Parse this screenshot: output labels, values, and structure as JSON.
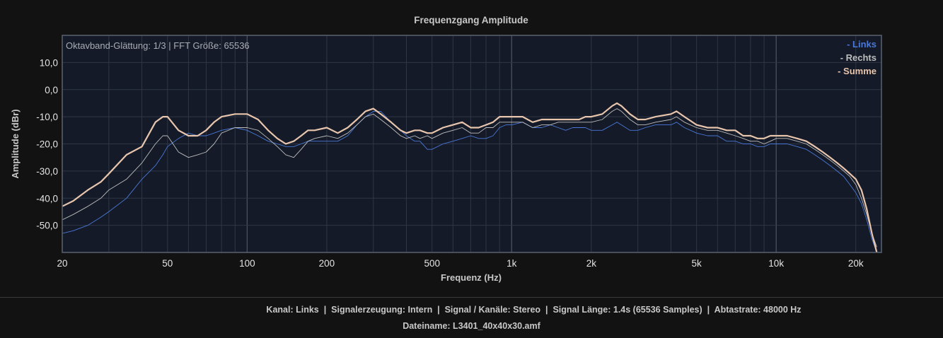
{
  "chart_data": {
    "type": "line",
    "title": "Frequenzgang Amplitude",
    "xlabel": "Frequenz (Hz)",
    "ylabel": "Amplitude (dBr)",
    "x_scale": "log",
    "xlim": [
      20,
      25000
    ],
    "ylim": [
      -60,
      20
    ],
    "x_ticks": [
      20,
      50,
      100,
      200,
      500,
      1000,
      2000,
      5000,
      10000,
      20000
    ],
    "x_tick_labels": [
      "20",
      "50",
      "100",
      "200",
      "500",
      "1k",
      "2k",
      "5k",
      "10k",
      "20k"
    ],
    "y_ticks": [
      10,
      0,
      -10,
      -20,
      -30,
      -40,
      -50
    ],
    "y_tick_labels": [
      "10,0",
      "0,0",
      "-10,0",
      "-20,0",
      "-30,0",
      "-40,0",
      "-50,0"
    ],
    "grid": true,
    "annotation": "Oktavband-Glättung: 1/3 | FFT Größe: 65536",
    "legend": {
      "placement": "top-right"
    },
    "series": [
      {
        "name": "- Links",
        "color": "#4a78d8",
        "points": [
          [
            20,
            -53
          ],
          [
            22,
            -52
          ],
          [
            25,
            -50
          ],
          [
            28,
            -47
          ],
          [
            30,
            -45
          ],
          [
            35,
            -40
          ],
          [
            40,
            -33
          ],
          [
            45,
            -28
          ],
          [
            48,
            -24
          ],
          [
            50,
            -21
          ],
          [
            55,
            -18
          ],
          [
            60,
            -16
          ],
          [
            65,
            -17
          ],
          [
            70,
            -17
          ],
          [
            75,
            -16
          ],
          [
            80,
            -15
          ],
          [
            90,
            -14
          ],
          [
            100,
            -15
          ],
          [
            110,
            -17
          ],
          [
            120,
            -19
          ],
          [
            130,
            -20
          ],
          [
            140,
            -21
          ],
          [
            150,
            -21
          ],
          [
            160,
            -20
          ],
          [
            170,
            -19
          ],
          [
            180,
            -19
          ],
          [
            200,
            -19
          ],
          [
            220,
            -19
          ],
          [
            240,
            -17
          ],
          [
            260,
            -13
          ],
          [
            280,
            -10
          ],
          [
            300,
            -8
          ],
          [
            320,
            -8
          ],
          [
            350,
            -12
          ],
          [
            380,
            -15
          ],
          [
            400,
            -17
          ],
          [
            430,
            -19
          ],
          [
            450,
            -19
          ],
          [
            480,
            -22
          ],
          [
            500,
            -22
          ],
          [
            550,
            -20
          ],
          [
            600,
            -19
          ],
          [
            650,
            -18
          ],
          [
            700,
            -17
          ],
          [
            750,
            -18
          ],
          [
            800,
            -18
          ],
          [
            850,
            -17
          ],
          [
            900,
            -14
          ],
          [
            950,
            -13
          ],
          [
            1000,
            -13
          ],
          [
            1100,
            -12
          ],
          [
            1200,
            -14
          ],
          [
            1300,
            -14
          ],
          [
            1400,
            -13
          ],
          [
            1500,
            -14
          ],
          [
            1600,
            -15
          ],
          [
            1700,
            -14
          ],
          [
            1800,
            -14
          ],
          [
            1900,
            -14
          ],
          [
            2000,
            -15
          ],
          [
            2200,
            -15
          ],
          [
            2400,
            -13
          ],
          [
            2500,
            -12
          ],
          [
            2600,
            -13
          ],
          [
            2800,
            -15
          ],
          [
            3000,
            -15
          ],
          [
            3200,
            -14
          ],
          [
            3500,
            -13
          ],
          [
            4000,
            -13
          ],
          [
            4200,
            -12
          ],
          [
            4500,
            -14
          ],
          [
            5000,
            -16
          ],
          [
            5500,
            -17
          ],
          [
            6000,
            -17
          ],
          [
            6500,
            -19
          ],
          [
            7000,
            -19
          ],
          [
            7500,
            -20
          ],
          [
            8000,
            -20
          ],
          [
            8500,
            -21
          ],
          [
            9000,
            -21
          ],
          [
            9500,
            -20
          ],
          [
            10000,
            -20
          ],
          [
            11000,
            -20
          ],
          [
            12000,
            -21
          ],
          [
            13000,
            -22
          ],
          [
            14000,
            -24
          ],
          [
            15000,
            -26
          ],
          [
            16000,
            -28
          ],
          [
            17000,
            -30
          ],
          [
            18000,
            -32
          ],
          [
            19000,
            -35
          ],
          [
            20000,
            -38
          ],
          [
            21000,
            -42
          ],
          [
            22000,
            -48
          ],
          [
            23000,
            -55
          ],
          [
            24000,
            -60
          ]
        ]
      },
      {
        "name": "- Rechts",
        "color": "#bdbdbd",
        "points": [
          [
            20,
            -48
          ],
          [
            22,
            -46
          ],
          [
            25,
            -43
          ],
          [
            28,
            -40
          ],
          [
            30,
            -37
          ],
          [
            35,
            -33
          ],
          [
            40,
            -27
          ],
          [
            45,
            -20
          ],
          [
            48,
            -17
          ],
          [
            50,
            -17
          ],
          [
            55,
            -23
          ],
          [
            60,
            -25
          ],
          [
            65,
            -24
          ],
          [
            70,
            -23
          ],
          [
            75,
            -20
          ],
          [
            80,
            -16
          ],
          [
            90,
            -14
          ],
          [
            100,
            -14
          ],
          [
            110,
            -15
          ],
          [
            120,
            -18
          ],
          [
            130,
            -21
          ],
          [
            140,
            -24
          ],
          [
            150,
            -25
          ],
          [
            160,
            -22
          ],
          [
            170,
            -19
          ],
          [
            180,
            -18
          ],
          [
            200,
            -17
          ],
          [
            220,
            -18
          ],
          [
            240,
            -16
          ],
          [
            260,
            -13
          ],
          [
            280,
            -10
          ],
          [
            300,
            -9
          ],
          [
            320,
            -11
          ],
          [
            350,
            -14
          ],
          [
            380,
            -17
          ],
          [
            400,
            -18
          ],
          [
            430,
            -17
          ],
          [
            450,
            -18
          ],
          [
            480,
            -17
          ],
          [
            500,
            -18
          ],
          [
            550,
            -16
          ],
          [
            600,
            -15
          ],
          [
            650,
            -14
          ],
          [
            700,
            -16
          ],
          [
            750,
            -16
          ],
          [
            800,
            -14
          ],
          [
            850,
            -14
          ],
          [
            900,
            -12
          ],
          [
            950,
            -12
          ],
          [
            1000,
            -12
          ],
          [
            1100,
            -12
          ],
          [
            1200,
            -14
          ],
          [
            1300,
            -13
          ],
          [
            1400,
            -13
          ],
          [
            1500,
            -12
          ],
          [
            1600,
            -12
          ],
          [
            1700,
            -12
          ],
          [
            1800,
            -12
          ],
          [
            1900,
            -12
          ],
          [
            2000,
            -12
          ],
          [
            2200,
            -11
          ],
          [
            2400,
            -8
          ],
          [
            2500,
            -7
          ],
          [
            2600,
            -8
          ],
          [
            2800,
            -11
          ],
          [
            3000,
            -13
          ],
          [
            3200,
            -13
          ],
          [
            3500,
            -12
          ],
          [
            4000,
            -11
          ],
          [
            4200,
            -10
          ],
          [
            4500,
            -12
          ],
          [
            5000,
            -14
          ],
          [
            5500,
            -15
          ],
          [
            6000,
            -15
          ],
          [
            6500,
            -16
          ],
          [
            7000,
            -17
          ],
          [
            7500,
            -18
          ],
          [
            8000,
            -19
          ],
          [
            8500,
            -19
          ],
          [
            9000,
            -20
          ],
          [
            9500,
            -19
          ],
          [
            10000,
            -18
          ],
          [
            11000,
            -18
          ],
          [
            12000,
            -19
          ],
          [
            13000,
            -20
          ],
          [
            14000,
            -22
          ],
          [
            15000,
            -24
          ],
          [
            16000,
            -26
          ],
          [
            17000,
            -28
          ],
          [
            18000,
            -30
          ],
          [
            19000,
            -32
          ],
          [
            20000,
            -35
          ],
          [
            21000,
            -40
          ],
          [
            22000,
            -46
          ],
          [
            23000,
            -53
          ],
          [
            24000,
            -58
          ]
        ]
      },
      {
        "name": "- Summe",
        "color": "#e8c5ad",
        "points": [
          [
            20,
            -43
          ],
          [
            22,
            -41
          ],
          [
            25,
            -37
          ],
          [
            28,
            -34
          ],
          [
            30,
            -31
          ],
          [
            35,
            -24
          ],
          [
            40,
            -21
          ],
          [
            45,
            -12
          ],
          [
            48,
            -10
          ],
          [
            50,
            -10
          ],
          [
            55,
            -15
          ],
          [
            60,
            -17
          ],
          [
            65,
            -17
          ],
          [
            70,
            -15
          ],
          [
            75,
            -12
          ],
          [
            80,
            -10
          ],
          [
            90,
            -9
          ],
          [
            100,
            -9
          ],
          [
            110,
            -11
          ],
          [
            120,
            -15
          ],
          [
            130,
            -18
          ],
          [
            140,
            -20
          ],
          [
            150,
            -19
          ],
          [
            160,
            -17
          ],
          [
            170,
            -15
          ],
          [
            180,
            -15
          ],
          [
            200,
            -14
          ],
          [
            220,
            -16
          ],
          [
            240,
            -14
          ],
          [
            260,
            -11
          ],
          [
            280,
            -8
          ],
          [
            300,
            -7
          ],
          [
            320,
            -9
          ],
          [
            350,
            -12
          ],
          [
            380,
            -15
          ],
          [
            400,
            -16
          ],
          [
            430,
            -15
          ],
          [
            450,
            -15
          ],
          [
            480,
            -16
          ],
          [
            500,
            -16
          ],
          [
            550,
            -14
          ],
          [
            600,
            -13
          ],
          [
            650,
            -12
          ],
          [
            700,
            -14
          ],
          [
            750,
            -14
          ],
          [
            800,
            -13
          ],
          [
            850,
            -12
          ],
          [
            900,
            -10
          ],
          [
            950,
            -10
          ],
          [
            1000,
            -10
          ],
          [
            1100,
            -10
          ],
          [
            1200,
            -12
          ],
          [
            1300,
            -11
          ],
          [
            1400,
            -11
          ],
          [
            1500,
            -11
          ],
          [
            1600,
            -11
          ],
          [
            1700,
            -11
          ],
          [
            1800,
            -11
          ],
          [
            1900,
            -10
          ],
          [
            2000,
            -10
          ],
          [
            2200,
            -9
          ],
          [
            2400,
            -6
          ],
          [
            2500,
            -5
          ],
          [
            2600,
            -6
          ],
          [
            2800,
            -9
          ],
          [
            3000,
            -11
          ],
          [
            3200,
            -11
          ],
          [
            3500,
            -10
          ],
          [
            4000,
            -9
          ],
          [
            4200,
            -8
          ],
          [
            4500,
            -10
          ],
          [
            5000,
            -13
          ],
          [
            5500,
            -14
          ],
          [
            6000,
            -14
          ],
          [
            6500,
            -15
          ],
          [
            7000,
            -15
          ],
          [
            7500,
            -17
          ],
          [
            8000,
            -17
          ],
          [
            8500,
            -18
          ],
          [
            9000,
            -18
          ],
          [
            9500,
            -17
          ],
          [
            10000,
            -17
          ],
          [
            11000,
            -17
          ],
          [
            12000,
            -18
          ],
          [
            13000,
            -19
          ],
          [
            14000,
            -21
          ],
          [
            15000,
            -23
          ],
          [
            16000,
            -25
          ],
          [
            17000,
            -27
          ],
          [
            18000,
            -29
          ],
          [
            19000,
            -31
          ],
          [
            20000,
            -33
          ],
          [
            21000,
            -37
          ],
          [
            22000,
            -44
          ],
          [
            23000,
            -53
          ],
          [
            24000,
            -60
          ]
        ]
      }
    ]
  },
  "footer": {
    "items": [
      "Kanal: Links",
      "Signalerzeugung: Intern",
      "Signal / Kanäle: Stereo",
      "Signal Länge: 1.4s (65536 Samples)",
      "Abtastrate: 48000 Hz"
    ],
    "separator": "  |  ",
    "filename": "Dateiname: L3401_40x40x30.amf"
  },
  "colors": {
    "background": "#121212",
    "plot_background": "#141a27",
    "grid": "#2f3646",
    "axis_frame": "#5b6270",
    "text": "#c8c8c8"
  }
}
